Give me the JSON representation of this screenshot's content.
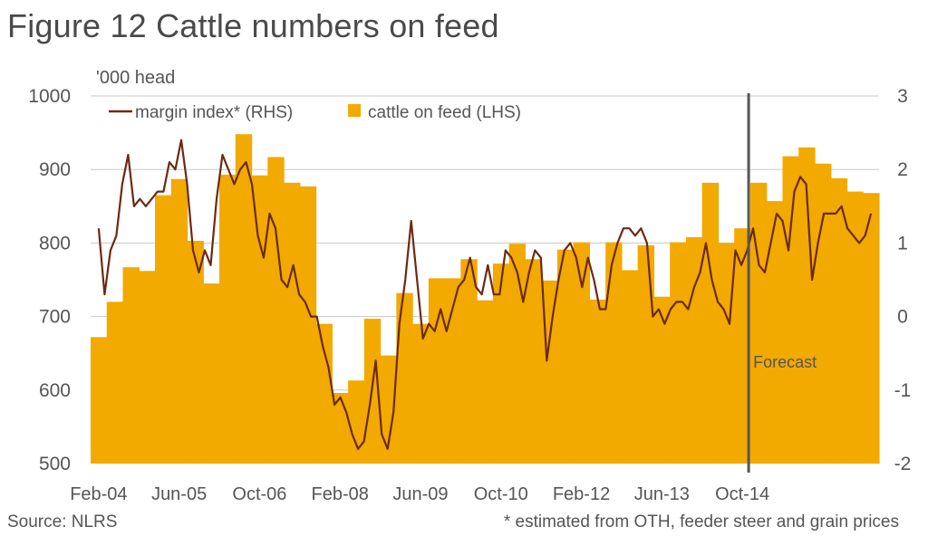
{
  "header": {
    "title": "Figure 12 Cattle numbers on feed"
  },
  "footer": {
    "source": "Source: NLRS",
    "note": "* estimated from OTH, feeder steer and grain prices"
  },
  "colors": {
    "bars": "#f2a900",
    "line": "#6b2a12",
    "forecast_line": "#555555",
    "text": "#555555"
  },
  "chart_data": {
    "type": "bar",
    "title": "Figure 12 Cattle numbers on feed",
    "left_axis_label": "'000 head",
    "ylim": [
      500,
      1000
    ],
    "y_ticks": [
      "500",
      "600",
      "700",
      "800",
      "900",
      "1000"
    ],
    "y2lim": [
      -2,
      3
    ],
    "y2_ticks": [
      "-2",
      "-1",
      "0",
      "1",
      "2",
      "3"
    ],
    "x_tick_labels": [
      "Feb-04",
      "Jun-05",
      "Oct-06",
      "Feb-08",
      "Jun-09",
      "Oct-10",
      "Feb-12",
      "Jun-13",
      "Oct-14"
    ],
    "x_tick_quarter_index": [
      0,
      5,
      10,
      15,
      20,
      25,
      30,
      35,
      40
    ],
    "quarters_start": "Feb-04",
    "legend": [
      {
        "label": "margin index* (RHS)",
        "kind": "line"
      },
      {
        "label": "cattle on feed (LHS)",
        "kind": "bar"
      }
    ],
    "forecast_label": "Forecast",
    "forecast_at": "Oct-14",
    "series": [
      {
        "name": "cattle on feed (LHS)",
        "axis": "left",
        "values": [
          672,
          720,
          767,
          762,
          865,
          887,
          803,
          745,
          893,
          948,
          892,
          917,
          882,
          877,
          690,
          596,
          613,
          697,
          647,
          732,
          690,
          752,
          752,
          778,
          722,
          772,
          799,
          778,
          749,
          791,
          801,
          723,
          801,
          763,
          797,
          727,
          801,
          808,
          882,
          800,
          820,
          882,
          857,
          918,
          930,
          908,
          888,
          870,
          868
        ]
      },
      {
        "name": "margin index* (RHS)",
        "axis": "right",
        "monthly_values": [
          1.2,
          0.3,
          0.9,
          1.1,
          1.8,
          2.2,
          1.5,
          1.6,
          1.5,
          1.6,
          1.7,
          1.7,
          2.1,
          2.0,
          2.4,
          1.8,
          0.9,
          0.6,
          0.9,
          0.7,
          1.6,
          2.2,
          2.0,
          1.8,
          2.0,
          2.1,
          1.8,
          1.1,
          0.8,
          1.4,
          1.2,
          0.5,
          0.4,
          0.7,
          0.3,
          0.2,
          0.0,
          0.0,
          -0.4,
          -0.7,
          -1.2,
          -1.1,
          -1.3,
          -1.6,
          -1.8,
          -1.7,
          -1.2,
          -0.6,
          -1.6,
          -1.8,
          -1.3,
          -0.1,
          0.5,
          1.3,
          0.5,
          -0.3,
          -0.1,
          -0.2,
          0.1,
          -0.2,
          0.1,
          0.4,
          0.5,
          0.8,
          0.4,
          0.3,
          0.7,
          0.3,
          0.3,
          0.9,
          0.8,
          0.6,
          0.2,
          0.6,
          0.9,
          0.8,
          -0.6,
          0.0,
          0.5,
          0.9,
          1.0,
          0.8,
          0.4,
          0.8,
          0.5,
          0.1,
          0.1,
          0.7,
          1.0,
          1.2,
          1.2,
          1.1,
          1.2,
          1.0,
          0.0,
          0.1,
          -0.1,
          0.1,
          0.2,
          0.2,
          0.1,
          0.4,
          0.6,
          1.0,
          0.5,
          0.2,
          0.1,
          -0.1,
          0.9,
          0.7,
          0.9,
          1.2,
          0.7,
          0.6,
          1.0,
          1.4,
          1.3,
          0.9,
          1.7,
          1.9,
          1.8,
          0.5,
          1.0,
          1.4,
          1.4,
          1.4,
          1.5,
          1.2,
          1.1,
          1.0,
          1.1,
          1.4
        ]
      }
    ]
  }
}
